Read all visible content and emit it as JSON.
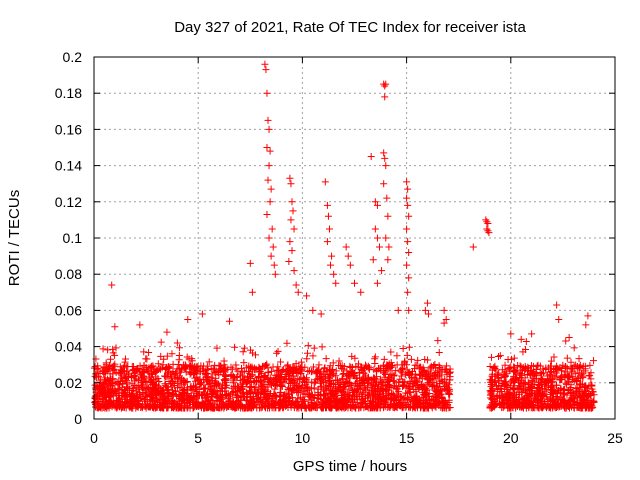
{
  "chart_data": {
    "type": "scatter",
    "title": "Day 327 of 2021, Rate Of TEC Index for receiver ista",
    "xlabel": "GPS time / hours",
    "ylabel": "ROTI / TECUs",
    "xlim": [
      0,
      25
    ],
    "ylim": [
      0,
      0.2
    ],
    "x_ticks": [
      0,
      5,
      10,
      15,
      20,
      25
    ],
    "x_tick_labels": [
      "0",
      "5",
      "10",
      "15",
      "20",
      "25"
    ],
    "y_ticks": [
      0,
      0.02,
      0.04,
      0.06,
      0.08,
      0.1,
      0.12,
      0.14,
      0.16,
      0.18,
      0.2
    ],
    "y_tick_labels": [
      "0",
      "0.02",
      "0.04",
      "0.06",
      "0.08",
      "0.1",
      "0.12",
      "0.14",
      "0.16",
      "0.18",
      "0.2"
    ],
    "grid": true,
    "marker": "+",
    "marker_color": "#ff0000",
    "dense_coverage_hours": [
      [
        0,
        17.1
      ],
      [
        19.0,
        24.0
      ]
    ],
    "dense_band": [
      0.006,
      0.03
    ],
    "series": [
      {
        "name": "ROTI",
        "points": [
          [
            0.85,
            0.074
          ],
          [
            8.2,
            0.196
          ],
          [
            8.25,
            0.193
          ],
          [
            8.3,
            0.18
          ],
          [
            8.35,
            0.165
          ],
          [
            8.4,
            0.16
          ],
          [
            8.3,
            0.15
          ],
          [
            8.45,
            0.148
          ],
          [
            8.4,
            0.14
          ],
          [
            8.35,
            0.132
          ],
          [
            8.5,
            0.127
          ],
          [
            8.45,
            0.12
          ],
          [
            8.3,
            0.113
          ],
          [
            8.55,
            0.105
          ],
          [
            8.4,
            0.1
          ],
          [
            8.6,
            0.095
          ],
          [
            8.5,
            0.09
          ],
          [
            8.65,
            0.085
          ],
          [
            8.7,
            0.08
          ],
          [
            7.5,
            0.086
          ],
          [
            7.6,
            0.07
          ],
          [
            9.4,
            0.133
          ],
          [
            9.45,
            0.13
          ],
          [
            9.5,
            0.12
          ],
          [
            9.55,
            0.115
          ],
          [
            9.45,
            0.11
          ],
          [
            9.6,
            0.105
          ],
          [
            9.4,
            0.098
          ],
          [
            9.5,
            0.093
          ],
          [
            9.35,
            0.087
          ],
          [
            9.6,
            0.082
          ],
          [
            9.7,
            0.074
          ],
          [
            9.8,
            0.07
          ],
          [
            11.1,
            0.131
          ],
          [
            11.2,
            0.118
          ],
          [
            11.25,
            0.112
          ],
          [
            11.3,
            0.105
          ],
          [
            11.2,
            0.098
          ],
          [
            11.4,
            0.09
          ],
          [
            11.35,
            0.085
          ],
          [
            11.5,
            0.08
          ],
          [
            11.6,
            0.075
          ],
          [
            12.1,
            0.095
          ],
          [
            12.2,
            0.09
          ],
          [
            12.3,
            0.085
          ],
          [
            13.3,
            0.145
          ],
          [
            13.5,
            0.12
          ],
          [
            13.6,
            0.118
          ],
          [
            13.5,
            0.105
          ],
          [
            13.6,
            0.1
          ],
          [
            13.7,
            0.095
          ],
          [
            13.4,
            0.088
          ],
          [
            13.8,
            0.082
          ],
          [
            13.6,
            0.075
          ],
          [
            13.9,
            0.185
          ],
          [
            13.95,
            0.184
          ],
          [
            14.0,
            0.185
          ],
          [
            13.95,
            0.178
          ],
          [
            13.9,
            0.147
          ],
          [
            13.95,
            0.144
          ],
          [
            14.0,
            0.14
          ],
          [
            13.9,
            0.13
          ],
          [
            14.05,
            0.122
          ],
          [
            14.1,
            0.112
          ],
          [
            14.0,
            0.1
          ],
          [
            14.15,
            0.095
          ],
          [
            14.1,
            0.088
          ],
          [
            15.0,
            0.131
          ],
          [
            15.05,
            0.127
          ],
          [
            15.0,
            0.122
          ],
          [
            15.05,
            0.118
          ],
          [
            15.1,
            0.112
          ],
          [
            15.0,
            0.105
          ],
          [
            15.05,
            0.098
          ],
          [
            15.1,
            0.092
          ],
          [
            15.0,
            0.085
          ],
          [
            15.1,
            0.078
          ],
          [
            15.05,
            0.07
          ],
          [
            15.1,
            0.06
          ],
          [
            16.0,
            0.064
          ],
          [
            15.9,
            0.06
          ],
          [
            16.05,
            0.058
          ],
          [
            16.8,
            0.06
          ],
          [
            16.9,
            0.055
          ],
          [
            16.8,
            0.053
          ],
          [
            18.2,
            0.095
          ],
          [
            18.8,
            0.11
          ],
          [
            18.85,
            0.109
          ],
          [
            18.9,
            0.108
          ],
          [
            18.85,
            0.105
          ],
          [
            18.9,
            0.104
          ],
          [
            18.95,
            0.103
          ],
          [
            22.2,
            0.063
          ],
          [
            22.3,
            0.055
          ],
          [
            23.7,
            0.057
          ],
          [
            23.6,
            0.052
          ],
          [
            21.0,
            0.047
          ],
          [
            20.0,
            0.047
          ],
          [
            20.5,
            0.044
          ],
          [
            22.8,
            0.045
          ],
          [
            3.5,
            0.048
          ],
          [
            2.2,
            0.052
          ],
          [
            1.0,
            0.051
          ],
          [
            4.5,
            0.055
          ],
          [
            5.2,
            0.058
          ],
          [
            6.5,
            0.054
          ],
          [
            4.0,
            0.042
          ],
          [
            10.2,
            0.068
          ],
          [
            10.5,
            0.06
          ],
          [
            12.5,
            0.075
          ],
          [
            12.8,
            0.07
          ],
          [
            14.6,
            0.06
          ],
          [
            10.9,
            0.058
          ]
        ]
      }
    ]
  }
}
